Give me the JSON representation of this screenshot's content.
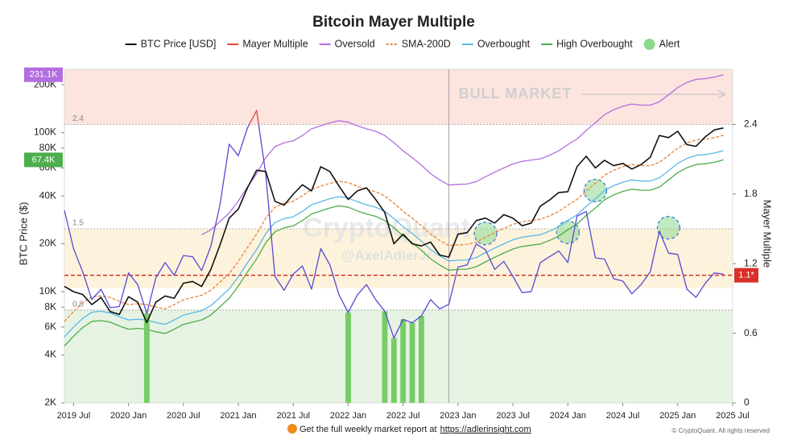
{
  "chart_data": {
    "type": "line",
    "title": "Bitcoin Mayer Multiple",
    "y_label": "BTC Price ($)",
    "y2_label": "Mayer Multiple",
    "annotation": "BULL MARKET",
    "watermark": [
      "CryptoQuant",
      "@AxelAdlerJr"
    ],
    "footer_text": "Get the full weekly market report at",
    "footer_link": "https://adlerinsight.com",
    "copyright": "© CryptoQuant. All rights reserved",
    "log_y": true,
    "xlim": [
      "2019-06",
      "2025-07"
    ],
    "xticks": [
      {
        "value": "2019-07",
        "label": "2019 Jul"
      },
      {
        "value": "2020-01",
        "label": "2020 Jan"
      },
      {
        "value": "2020-07",
        "label": "2020 Jul"
      },
      {
        "value": "2021-01",
        "label": "2021 Jan"
      },
      {
        "value": "2021-07",
        "label": "2021 Jul"
      },
      {
        "value": "2022-01",
        "label": "2022 Jan"
      },
      {
        "value": "2022-07",
        "label": "2022 Jul"
      },
      {
        "value": "2023-01",
        "label": "2023 Jan"
      },
      {
        "value": "2023-07",
        "label": "2023 Jul"
      },
      {
        "value": "2024-01",
        "label": "2024 Jan"
      },
      {
        "value": "2024-07",
        "label": "2024 Jul"
      },
      {
        "value": "2025-01",
        "label": "2025 Jan"
      },
      {
        "value": "2025-07",
        "label": "2025 Jul"
      }
    ],
    "ylim": [
      2000,
      250000
    ],
    "yticks": [
      {
        "value": 2000,
        "label": "2K"
      },
      {
        "value": 4000,
        "label": "4K"
      },
      {
        "value": 6000,
        "label": "6K"
      },
      {
        "value": 8000,
        "label": "8K"
      },
      {
        "value": 10000,
        "label": "10K"
      },
      {
        "value": 20000,
        "label": "20K"
      },
      {
        "value": 40000,
        "label": "40K"
      },
      {
        "value": 60000,
        "label": "60K"
      },
      {
        "value": 80000,
        "label": "80K"
      },
      {
        "value": 100000,
        "label": "100K"
      },
      {
        "value": 200000,
        "label": "200K"
      }
    ],
    "y2lim": [
      0,
      2.875
    ],
    "y2ticks": [
      0,
      0.6,
      1.2,
      1.8,
      2.4
    ],
    "levels": [
      2.4,
      1.5,
      0.8,
      {
        "value": 1.1,
        "label": "1.1*"
      }
    ],
    "level_colors": [
      "#9a9a9a",
      "#9a9a9a",
      "#9a9a9a",
      "#d9302a"
    ],
    "zones": [
      {
        "from": 2.4,
        "to": 2.875,
        "color": "#fce4df"
      },
      {
        "from": 0.99,
        "to": 1.5,
        "color": "#fdf3dc"
      },
      {
        "from": 0,
        "to": 0.8,
        "color": "#e6f3e3"
      }
    ],
    "divider_x": "2022-12",
    "x": [
      "2019-06",
      "2019-07",
      "2019-08",
      "2019-09",
      "2019-10",
      "2019-11",
      "2019-12",
      "2020-01",
      "2020-02",
      "2020-03",
      "2020-04",
      "2020-05",
      "2020-06",
      "2020-07",
      "2020-08",
      "2020-09",
      "2020-10",
      "2020-11",
      "2020-12",
      "2021-01",
      "2021-02",
      "2021-03",
      "2021-04",
      "2021-05",
      "2021-06",
      "2021-07",
      "2021-08",
      "2021-09",
      "2021-10",
      "2021-11",
      "2021-12",
      "2022-01",
      "2022-02",
      "2022-03",
      "2022-04",
      "2022-05",
      "2022-06",
      "2022-07",
      "2022-08",
      "2022-09",
      "2022-10",
      "2022-11",
      "2022-12",
      "2023-01",
      "2023-02",
      "2023-03",
      "2023-04",
      "2023-05",
      "2023-06",
      "2023-07",
      "2023-08",
      "2023-09",
      "2023-10",
      "2023-11",
      "2023-12",
      "2024-01",
      "2024-02",
      "2024-03",
      "2024-04",
      "2024-05",
      "2024-06",
      "2024-07",
      "2024-08",
      "2024-09",
      "2024-10",
      "2024-11",
      "2024-12",
      "2025-01",
      "2025-02",
      "2025-03",
      "2025-04",
      "2025-05",
      "2025-06"
    ],
    "series": [
      {
        "name": "BTC Price [USD]",
        "color": "#111111",
        "values": [
          10800,
          10000,
          9600,
          8300,
          9200,
          7500,
          7200,
          9300,
          8600,
          6400,
          8600,
          9400,
          9100,
          11300,
          11600,
          10800,
          13800,
          19700,
          29000,
          33000,
          45000,
          58000,
          57000,
          37000,
          35000,
          41000,
          47000,
          43000,
          61000,
          57000,
          46000,
          38000,
          43000,
          45000,
          38000,
          31500,
          20000,
          23000,
          20000,
          19400,
          20500,
          17000,
          16500,
          23000,
          23500,
          28000,
          29000,
          27000,
          30500,
          29000,
          26000,
          27000,
          34500,
          37700,
          42000,
          42500,
          61000,
          71000,
          60000,
          67000,
          62000,
          64000,
          59000,
          63000,
          70000,
          96000,
          93000,
          102000,
          84000,
          82000,
          94000,
          104000,
          107000
        ]
      },
      {
        "name": "Mayer Multiple",
        "color": "#e8453c",
        "line_color": "#5549d4",
        "low_color": "#77cc66",
        "axis": "y2",
        "values": [
          1.66,
          1.33,
          1.13,
          0.89,
          0.98,
          0.82,
          0.83,
          1.12,
          1.02,
          0.77,
          1.08,
          1.21,
          1.1,
          1.27,
          1.26,
          1.14,
          1.35,
          1.71,
          2.23,
          2.13,
          2.37,
          2.52,
          1.97,
          1.09,
          0.97,
          1.11,
          1.18,
          0.98,
          1.33,
          1.19,
          0.93,
          0.78,
          0.93,
          1.02,
          0.89,
          0.79,
          0.56,
          0.72,
          0.69,
          0.75,
          0.89,
          0.81,
          0.85,
          1.17,
          1.19,
          1.37,
          1.32,
          1.15,
          1.22,
          1.09,
          0.95,
          0.96,
          1.21,
          1.26,
          1.31,
          1.21,
          1.61,
          1.65,
          1.25,
          1.24,
          1.07,
          1.05,
          0.94,
          1.02,
          1.13,
          1.48,
          1.29,
          1.28,
          0.98,
          0.91,
          1.03,
          1.12,
          1.11
        ]
      },
      {
        "name": "Oversold",
        "color": "#b36ee0",
        "last_label": "231.1K",
        "values": [
          null,
          null,
          null,
          null,
          null,
          null,
          null,
          null,
          null,
          null,
          null,
          null,
          null,
          null,
          null,
          22800,
          24480,
          27600,
          31200,
          37200,
          45600,
          55200,
          69600,
          81600,
          86400,
          88800,
          96000,
          105600,
          110400,
          115200,
          118800,
          116400,
          110400,
          105600,
          102000,
          96000,
          86400,
          76800,
          69600,
          62400,
          55200,
          50400,
          46800,
          47280,
          47520,
          49200,
          52800,
          56400,
          60000,
          63600,
          66000,
          67200,
          68400,
          72000,
          76800,
          84000,
          91200,
          103200,
          115200,
          129600,
          139200,
          146400,
          151200,
          148800,
          148800,
          156000,
          172800,
          192000,
          206400,
          216000,
          218400,
          223200,
          231100
        ]
      },
      {
        "name": "SMA-200D",
        "color": "#e8833a",
        "dash": true,
        "values": [
          6500,
          7500,
          8500,
          9300,
          9400,
          9200,
          8700,
          8300,
          8400,
          8300,
          8000,
          7800,
          8300,
          8900,
          9200,
          9500,
          10200,
          11500,
          13000,
          15500,
          19000,
          23000,
          29000,
          34000,
          36000,
          37000,
          40000,
          44000,
          46000,
          48000,
          49500,
          48500,
          46000,
          44000,
          42500,
          40000,
          36000,
          32000,
          29000,
          26000,
          23000,
          21000,
          19500,
          19700,
          19800,
          20500,
          22000,
          23500,
          25000,
          26500,
          27500,
          28000,
          28500,
          30000,
          32000,
          35000,
          38000,
          43000,
          48000,
          54000,
          58000,
          61000,
          63000,
          62000,
          62000,
          65000,
          72000,
          80000,
          86000,
          90000,
          91000,
          93000,
          96300
        ]
      },
      {
        "name": "Overbought",
        "color": "#5bb8e8",
        "values": [
          5200,
          6000,
          6800,
          7440,
          7520,
          7360,
          6960,
          6640,
          6720,
          6640,
          6400,
          6240,
          6640,
          7120,
          7360,
          7600,
          8160,
          9200,
          10400,
          12400,
          15200,
          18400,
          23200,
          27200,
          28800,
          29600,
          32000,
          35200,
          36800,
          38400,
          39600,
          38800,
          36800,
          35200,
          34000,
          32000,
          28800,
          25600,
          23200,
          20800,
          18400,
          16800,
          15600,
          15760,
          15840,
          16400,
          17600,
          18800,
          20000,
          21200,
          22000,
          22400,
          22800,
          24000,
          25600,
          28000,
          30400,
          34400,
          38400,
          43200,
          46400,
          48800,
          50400,
          49600,
          49600,
          52000,
          57600,
          64000,
          68800,
          72000,
          72800,
          74400,
          77000
        ]
      },
      {
        "name": "High Overbought",
        "color": "#4cae4c",
        "last_label": "67.4K",
        "values": [
          4550,
          5250,
          5950,
          6510,
          6580,
          6440,
          6090,
          5810,
          5880,
          5810,
          5600,
          5460,
          5810,
          6230,
          6440,
          6650,
          7140,
          8050,
          9100,
          10850,
          13300,
          16100,
          20300,
          23800,
          25200,
          25900,
          28000,
          30800,
          32200,
          33600,
          34650,
          33950,
          32200,
          30800,
          29750,
          28000,
          25200,
          22400,
          20300,
          18200,
          16100,
          14700,
          13650,
          13790,
          13860,
          14350,
          15400,
          16450,
          17500,
          18550,
          19250,
          19600,
          19950,
          21000,
          22400,
          24500,
          26600,
          30100,
          33600,
          37800,
          40600,
          42700,
          44100,
          43400,
          43400,
          45500,
          50400,
          56000,
          60200,
          63000,
          63700,
          65100,
          67400
        ]
      },
      {
        "name": "Alert",
        "color": "#8ed88f",
        "axis": "y2",
        "type": "scatter",
        "x": [
          "2023-04",
          "2024-01",
          "2024-04",
          "2024-12"
        ],
        "values": [
          1.46,
          1.47,
          1.83,
          1.51
        ]
      }
    ]
  }
}
